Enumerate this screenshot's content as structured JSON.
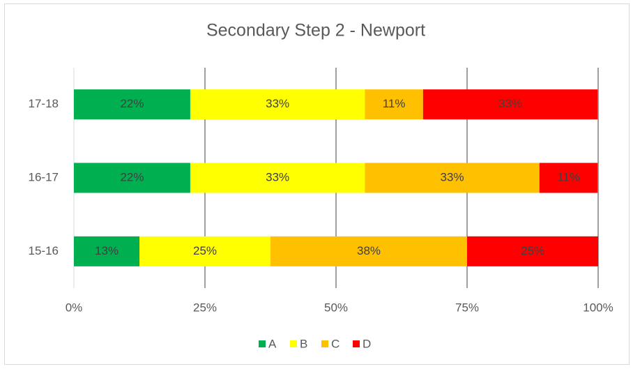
{
  "chart_data": {
    "type": "stacked_bar_horizontal",
    "title": "Secondary Step 2 - Newport",
    "categories": [
      "15-16",
      "16-17",
      "17-18"
    ],
    "series": [
      {
        "name": "A",
        "color": "#00b050",
        "values": [
          12.5,
          22.2,
          22.2
        ],
        "value_labels": [
          "13%",
          "22%",
          "22%"
        ]
      },
      {
        "name": "B",
        "color": "#ffff00",
        "values": [
          25,
          33.3,
          33.3
        ],
        "value_labels": [
          "25%",
          "33%",
          "33%"
        ]
      },
      {
        "name": "C",
        "color": "#ffc000",
        "values": [
          37.5,
          33.3,
          11.1
        ],
        "value_labels": [
          "38%",
          "33%",
          "11%"
        ]
      },
      {
        "name": "D",
        "color": "#ff0000",
        "values": [
          25,
          11.1,
          33.3
        ],
        "value_labels": [
          "25%",
          "11%",
          "33%"
        ]
      }
    ],
    "xlim": [
      0,
      100
    ],
    "xticks": [
      {
        "value": 0,
        "label": "0%"
      },
      {
        "value": 25,
        "label": "25%"
      },
      {
        "value": 50,
        "label": "50%"
      },
      {
        "value": 75,
        "label": "75%"
      },
      {
        "value": 100,
        "label": "100%"
      }
    ],
    "grid": true,
    "legend": "bottom"
  }
}
